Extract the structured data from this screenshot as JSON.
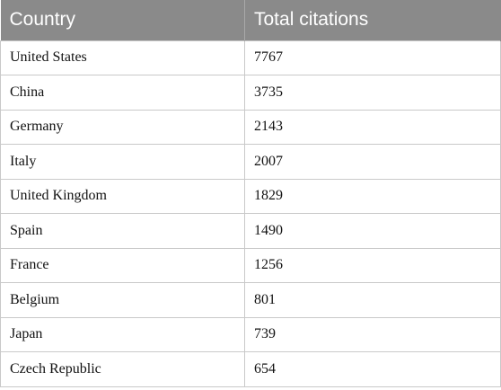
{
  "table": {
    "headers": [
      "Country",
      "Total citations"
    ],
    "rows": [
      [
        "United States",
        "7767"
      ],
      [
        "China",
        "3735"
      ],
      [
        "Germany",
        "2143"
      ],
      [
        "Italy",
        "2007"
      ],
      [
        "United Kingdom",
        "1829"
      ],
      [
        "Spain",
        "1490"
      ],
      [
        "France",
        "1256"
      ],
      [
        "Belgium",
        "801"
      ],
      [
        "Japan",
        "739"
      ],
      [
        "Czech Republic",
        "654"
      ]
    ]
  },
  "colors": {
    "header_background": "#8a8a8a",
    "header_text": "#ffffff",
    "grid_lines": "#c9c9c9"
  }
}
